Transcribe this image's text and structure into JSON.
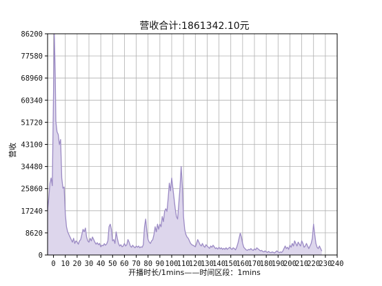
{
  "chart_data": {
    "type": "area",
    "title": "营收合计:1861342.10元",
    "xlabel": "开播时长/1mins——时间区段：1mins",
    "ylabel": "营收",
    "xlim": [
      -5,
      240
    ],
    "ylim": [
      0,
      86200
    ],
    "x_ticks": [
      0,
      10,
      20,
      30,
      40,
      50,
      60,
      70,
      80,
      90,
      100,
      110,
      120,
      130,
      140,
      150,
      160,
      170,
      180,
      190,
      200,
      210,
      220,
      230,
      240
    ],
    "y_ticks": [
      0,
      8620,
      17240,
      25860,
      34480,
      43100,
      51720,
      60340,
      68960,
      77580,
      86200
    ],
    "grid": true,
    "series": [
      {
        "color": "#9b8ac4",
        "fill": "#ddd6ec",
        "points": [
          [
            -5,
            17500
          ],
          [
            -4,
            22000
          ],
          [
            -3,
            28000
          ],
          [
            -2,
            30000
          ],
          [
            -1,
            27000
          ],
          [
            0,
            62000
          ],
          [
            0.7,
            86200
          ],
          [
            1.5,
            70000
          ],
          [
            2,
            52000
          ],
          [
            3,
            48000
          ],
          [
            4,
            47000
          ],
          [
            5,
            43000
          ],
          [
            6,
            45000
          ],
          [
            7,
            30000
          ],
          [
            8,
            26000
          ],
          [
            9,
            26500
          ],
          [
            10,
            16000
          ],
          [
            11,
            11000
          ],
          [
            12,
            9000
          ],
          [
            13,
            8000
          ],
          [
            14,
            7000
          ],
          [
            15,
            6000
          ],
          [
            16,
            5000
          ],
          [
            17,
            6500
          ],
          [
            18,
            4500
          ],
          [
            19,
            5500
          ],
          [
            20,
            5000
          ],
          [
            21,
            4200
          ],
          [
            22,
            5500
          ],
          [
            23,
            6000
          ],
          [
            24,
            8000
          ],
          [
            25,
            10000
          ],
          [
            26,
            9000
          ],
          [
            27,
            10500
          ],
          [
            28,
            7000
          ],
          [
            29,
            5500
          ],
          [
            30,
            5000
          ],
          [
            31,
            6500
          ],
          [
            32,
            5500
          ],
          [
            33,
            7000
          ],
          [
            34,
            6000
          ],
          [
            35,
            5000
          ],
          [
            36,
            4200
          ],
          [
            37,
            4800
          ],
          [
            38,
            4000
          ],
          [
            39,
            4500
          ],
          [
            40,
            3200
          ],
          [
            41,
            3800
          ],
          [
            42,
            3600
          ],
          [
            43,
            4400
          ],
          [
            44,
            3800
          ],
          [
            45,
            4300
          ],
          [
            46,
            5500
          ],
          [
            47,
            11000
          ],
          [
            48,
            12000
          ],
          [
            49,
            10000
          ],
          [
            50,
            5500
          ],
          [
            51,
            6000
          ],
          [
            52,
            4500
          ],
          [
            53,
            9000
          ],
          [
            54,
            6500
          ],
          [
            55,
            4500
          ],
          [
            56,
            3500
          ],
          [
            57,
            4000
          ],
          [
            58,
            3200
          ],
          [
            59,
            3500
          ],
          [
            60,
            4500
          ],
          [
            61,
            3500
          ],
          [
            62,
            4000
          ],
          [
            63,
            6000
          ],
          [
            64,
            5000
          ],
          [
            65,
            3500
          ],
          [
            66,
            3000
          ],
          [
            67,
            3800
          ],
          [
            68,
            3200
          ],
          [
            69,
            2800
          ],
          [
            70,
            3500
          ],
          [
            71,
            3000
          ],
          [
            72,
            3500
          ],
          [
            73,
            2800
          ],
          [
            74,
            3200
          ],
          [
            75,
            3000
          ],
          [
            76,
            4000
          ],
          [
            77,
            11000
          ],
          [
            78,
            14000
          ],
          [
            79,
            9000
          ],
          [
            80,
            6000
          ],
          [
            81,
            5000
          ],
          [
            82,
            4500
          ],
          [
            83,
            5500
          ],
          [
            84,
            6000
          ],
          [
            85,
            8000
          ],
          [
            86,
            11000
          ],
          [
            87,
            9000
          ],
          [
            88,
            12000
          ],
          [
            89,
            10000
          ],
          [
            90,
            12000
          ],
          [
            91,
            11000
          ],
          [
            92,
            15000
          ],
          [
            93,
            13000
          ],
          [
            94,
            17000
          ],
          [
            95,
            18000
          ],
          [
            96,
            17000
          ],
          [
            97,
            22000
          ],
          [
            98,
            28000
          ],
          [
            99,
            25000
          ],
          [
            100,
            30000
          ],
          [
            101,
            26000
          ],
          [
            102,
            22000
          ],
          [
            103,
            18000
          ],
          [
            104,
            15000
          ],
          [
            105,
            14000
          ],
          [
            106,
            20000
          ],
          [
            107,
            26000
          ],
          [
            108,
            34500
          ],
          [
            109,
            27000
          ],
          [
            110,
            15000
          ],
          [
            111,
            10000
          ],
          [
            112,
            8000
          ],
          [
            113,
            7000
          ],
          [
            114,
            6500
          ],
          [
            115,
            5500
          ],
          [
            116,
            4500
          ],
          [
            117,
            4000
          ],
          [
            118,
            3800
          ],
          [
            119,
            3500
          ],
          [
            120,
            3200
          ],
          [
            121,
            4500
          ],
          [
            122,
            6000
          ],
          [
            123,
            5000
          ],
          [
            124,
            4000
          ],
          [
            125,
            3500
          ],
          [
            126,
            4500
          ],
          [
            127,
            3500
          ],
          [
            128,
            3000
          ],
          [
            129,
            4000
          ],
          [
            130,
            3500
          ],
          [
            131,
            3000
          ],
          [
            132,
            2600
          ],
          [
            133,
            3500
          ],
          [
            134,
            3000
          ],
          [
            135,
            3800
          ],
          [
            136,
            3200
          ],
          [
            137,
            2500
          ],
          [
            138,
            2800
          ],
          [
            139,
            2300
          ],
          [
            140,
            3000
          ],
          [
            141,
            2400
          ],
          [
            142,
            2800
          ],
          [
            143,
            2200
          ],
          [
            144,
            2600
          ],
          [
            145,
            2200
          ],
          [
            146,
            2800
          ],
          [
            147,
            2200
          ],
          [
            148,
            2600
          ],
          [
            149,
            3000
          ],
          [
            150,
            2500
          ],
          [
            151,
            2200
          ],
          [
            152,
            2800
          ],
          [
            153,
            2500
          ],
          [
            154,
            2000
          ],
          [
            155,
            3000
          ],
          [
            156,
            4500
          ],
          [
            157,
            6500
          ],
          [
            158,
            8500
          ],
          [
            159,
            7000
          ],
          [
            160,
            4500
          ],
          [
            161,
            3000
          ],
          [
            162,
            2500
          ],
          [
            163,
            2000
          ],
          [
            164,
            1800
          ],
          [
            165,
            2200
          ],
          [
            166,
            2000
          ],
          [
            167,
            2500
          ],
          [
            168,
            2000
          ],
          [
            169,
            1800
          ],
          [
            170,
            2400
          ],
          [
            171,
            2000
          ],
          [
            172,
            2800
          ],
          [
            173,
            2400
          ],
          [
            174,
            2000
          ],
          [
            175,
            1600
          ],
          [
            176,
            1800
          ],
          [
            177,
            1400
          ],
          [
            178,
            1200
          ],
          [
            179,
            1600
          ],
          [
            180,
            1200
          ],
          [
            181,
            1000
          ],
          [
            182,
            1400
          ],
          [
            183,
            1000
          ],
          [
            184,
            900
          ],
          [
            185,
            1200
          ],
          [
            186,
            1000
          ],
          [
            187,
            800
          ],
          [
            188,
            1200
          ],
          [
            189,
            1600
          ],
          [
            190,
            1200
          ],
          [
            191,
            900
          ],
          [
            192,
            1200
          ],
          [
            193,
            1000
          ],
          [
            194,
            1500
          ],
          [
            195,
            2500
          ],
          [
            196,
            3500
          ],
          [
            197,
            2500
          ],
          [
            198,
            3000
          ],
          [
            199,
            2200
          ],
          [
            200,
            3800
          ],
          [
            201,
            3000
          ],
          [
            202,
            4500
          ],
          [
            203,
            3500
          ],
          [
            204,
            5500
          ],
          [
            205,
            4500
          ],
          [
            206,
            3500
          ],
          [
            207,
            5000
          ],
          [
            208,
            4200
          ],
          [
            209,
            3500
          ],
          [
            210,
            5500
          ],
          [
            211,
            4500
          ],
          [
            212,
            3000
          ],
          [
            213,
            3500
          ],
          [
            214,
            4500
          ],
          [
            215,
            3500
          ],
          [
            216,
            2500
          ],
          [
            217,
            3500
          ],
          [
            218,
            4500
          ],
          [
            219,
            6500
          ],
          [
            220,
            12000
          ],
          [
            221,
            8000
          ],
          [
            222,
            4500
          ],
          [
            223,
            3000
          ],
          [
            224,
            2500
          ],
          [
            225,
            3500
          ],
          [
            226,
            2500
          ],
          [
            227,
            1500
          ]
        ]
      }
    ]
  }
}
